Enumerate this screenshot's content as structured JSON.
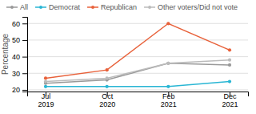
{
  "chart_data": {
    "type": "line",
    "categories": [
      "Jul\n2019",
      "Oct\n2020",
      "Feb\n2021",
      "Dec\n2021"
    ],
    "series": [
      {
        "name": "All",
        "color": "#999999",
        "marker": "circle",
        "values": [
          24,
          26,
          36,
          35
        ]
      },
      {
        "name": "Democrat",
        "color": "#29b6d4",
        "marker": "circle",
        "values": [
          22,
          22,
          22,
          25
        ]
      },
      {
        "name": "Republican",
        "color": "#e8613a",
        "marker": "circle",
        "values": [
          27,
          32,
          60,
          44
        ]
      },
      {
        "name": "Other voters/Did not vote",
        "color": "#bbbbbb",
        "marker": "circle",
        "values": [
          25,
          27,
          36,
          38
        ]
      }
    ],
    "ylabel": "Percentage",
    "ylim": [
      19,
      64
    ],
    "yticks": [
      20,
      30,
      40,
      50,
      60
    ],
    "grid": true,
    "legend": "top"
  }
}
